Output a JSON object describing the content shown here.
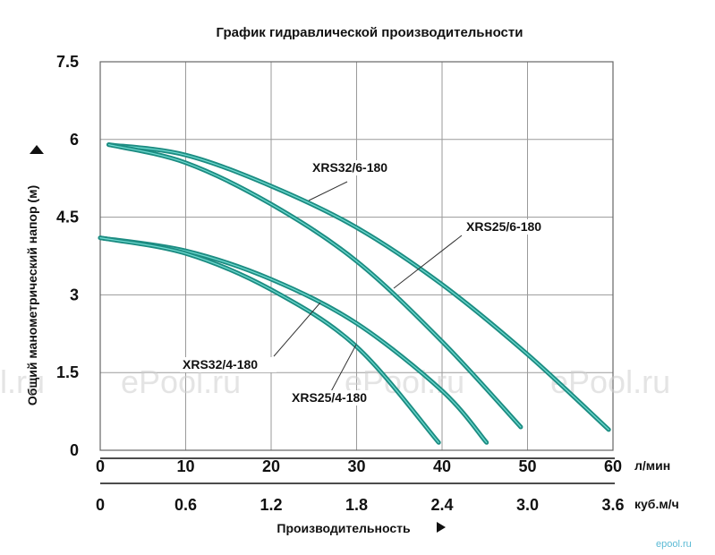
{
  "chart_data": {
    "type": "line",
    "title": "График гидравлической производительности",
    "ylabel": "Общий манометрический напор (м)",
    "xlabel": "Производительность",
    "ylim": [
      0,
      7.5
    ],
    "xlim": [
      0,
      60
    ],
    "y_ticks": [
      "0",
      "1.5",
      "3",
      "4.5",
      "6",
      "7.5"
    ],
    "x_ticks_primary": [
      "0",
      "10",
      "20",
      "30",
      "40",
      "50",
      "60"
    ],
    "x_primary_unit": "л/мин",
    "x_ticks_secondary": [
      "0",
      "0.6",
      "1.2",
      "1.8",
      "2.4",
      "3.0",
      "3.6"
    ],
    "x_secondary_unit": "куб.м/ч",
    "grid": true,
    "series": [
      {
        "name": "XRS32/6-180",
        "x": [
          1,
          10,
          20,
          30,
          40,
          50,
          59.5
        ],
        "y": [
          5.9,
          5.7,
          5.1,
          4.3,
          3.2,
          1.85,
          0.4
        ]
      },
      {
        "name": "XRS25/6-180",
        "x": [
          1,
          10,
          20,
          30,
          40,
          49.2
        ],
        "y": [
          5.9,
          5.55,
          4.75,
          3.65,
          2.1,
          0.45
        ]
      },
      {
        "name": "XRS32/4-180",
        "x": [
          0,
          10,
          20,
          30,
          40,
          45.2
        ],
        "y": [
          4.1,
          3.85,
          3.3,
          2.45,
          1.15,
          0.15
        ]
      },
      {
        "name": "XRS25/4-180",
        "x": [
          0,
          10,
          20,
          30,
          39.6
        ],
        "y": [
          4.1,
          3.8,
          3.1,
          2.0,
          0.15
        ]
      }
    ],
    "colors": {
      "curve": "#1c8c82",
      "highlight": "#6ed9cf"
    }
  },
  "watermark": {
    "text": "ePool.ru",
    "left_fragment": "l.ru",
    "site": "epool.ru"
  }
}
